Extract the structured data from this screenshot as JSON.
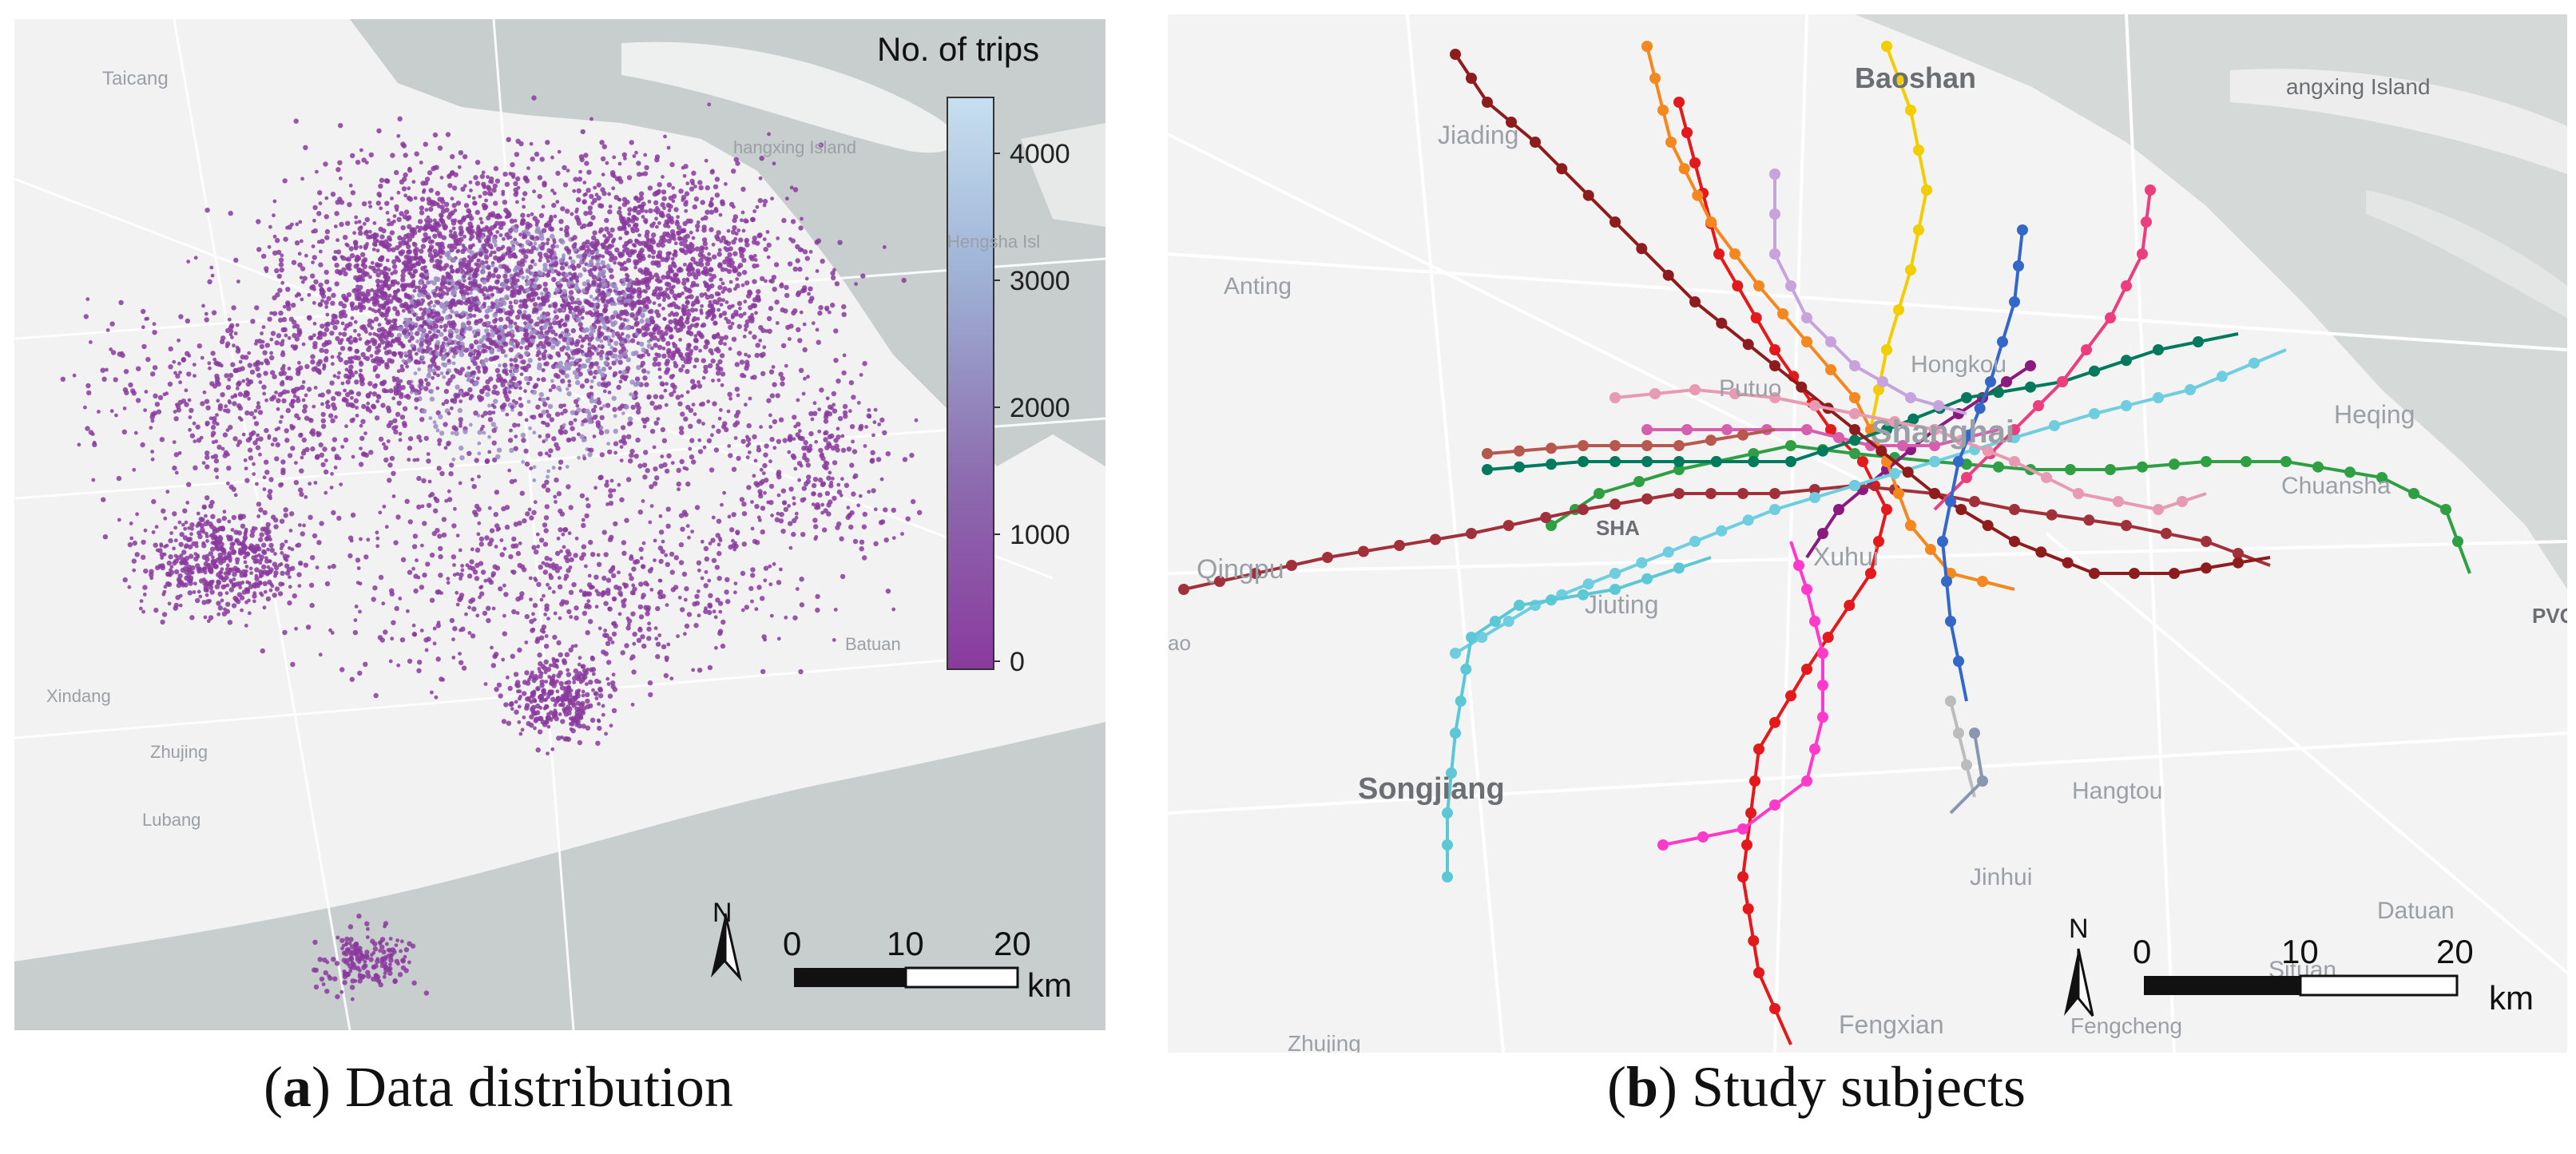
{
  "panel_a": {
    "caption_letter": "a",
    "caption_text": "Data distribution",
    "colorbar": {
      "title": "No. of trips",
      "ticks": [
        "4000",
        "3000",
        "2000",
        "1000",
        "0"
      ],
      "max_value": 4500,
      "colors": [
        "#8a3a9e",
        "#8d6fb0",
        "#9fb4d6",
        "#c7dff0"
      ]
    },
    "map_labels": [
      "Taicang",
      "Hengsha Isl",
      "hangxing Island",
      "Batuan",
      "Xindang",
      "Zhujing",
      "Lubang"
    ],
    "north_label": "N",
    "scale": {
      "labels": [
        "0",
        "10",
        "20"
      ],
      "unit": "km"
    }
  },
  "panel_b": {
    "caption_letter": "b",
    "caption_text": "Study subjects",
    "map_labels": [
      "Baoshan",
      "Jiading",
      "angxing Island",
      "Anting",
      "Heqing",
      "Putuo",
      "Hongkou",
      "Shanghai",
      "SHA",
      "Chuansha",
      "Qingpu",
      "Xuhui",
      "Jiuting",
      "PVG",
      "Songjiang",
      "Hangtou",
      "Jinhui",
      "Datuan",
      "Situan",
      "Fengxian",
      "Fengcheng",
      "Zhujing",
      "ao"
    ],
    "north_label": "N",
    "scale": {
      "labels": [
        "0",
        "10",
        "20"
      ],
      "unit": "km"
    },
    "metro_line_colors": [
      "#e4191b",
      "#2ea043",
      "#f2cd00",
      "#8b1a7f",
      "#a2303a",
      "#d65fad",
      "#f5871f",
      "#007a5c",
      "#6fcde0",
      "#c6a3dc",
      "#8f1c1c",
      "#ec3e7f",
      "#e89ab3",
      "#bcbcbc",
      "#3368c8",
      "#ff3acb",
      "#b7584e",
      "#5cc8d6",
      "#8a96b0"
    ]
  }
}
